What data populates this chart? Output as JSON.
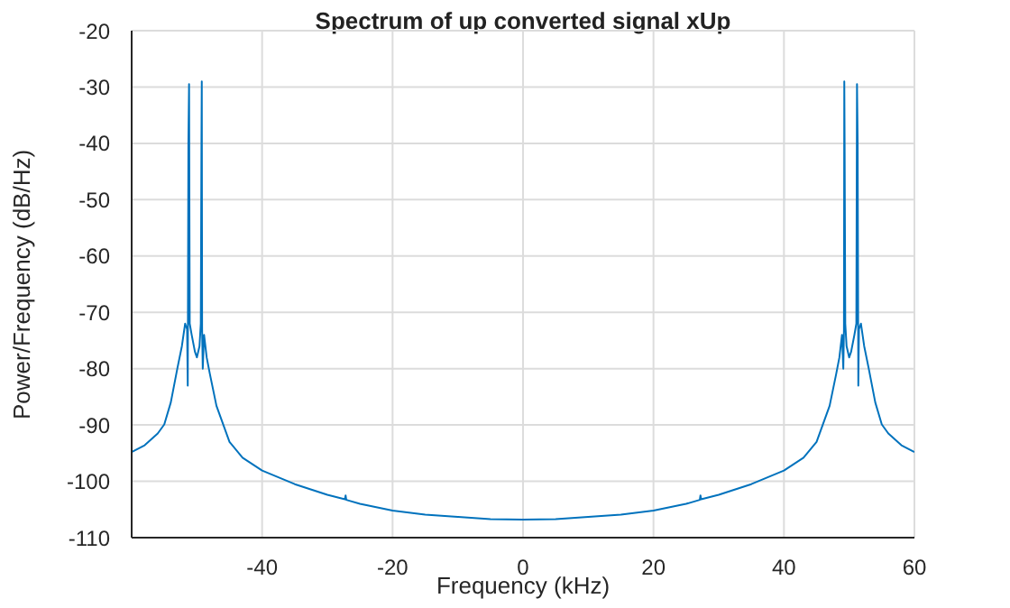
{
  "chart_data": {
    "type": "line",
    "title": "Spectrum of up converted signal xUp",
    "xlabel": "Frequency (kHz)",
    "ylabel": "Power/Frequency (dB/Hz)",
    "x": [
      -60,
      -58,
      -56,
      -55,
      -54,
      -53,
      -52.3,
      -51.8,
      -51.5,
      -51.4,
      -51.3,
      -51.2,
      -51.1,
      -50.8,
      -50.3,
      -50,
      -49.6,
      -49.4,
      -49.3,
      -49.25,
      -49.2,
      -49.1,
      -48.9,
      -48.5,
      -48,
      -47,
      -45,
      -43,
      -40,
      -35,
      -30,
      -27.3,
      -27.2,
      -27.1,
      -25,
      -20,
      -15,
      -10,
      -5,
      0,
      5,
      10,
      15,
      20,
      25,
      27.1,
      27.2,
      27.3,
      30,
      35,
      40,
      43,
      45,
      47,
      48,
      48.5,
      48.9,
      49.1,
      49.2,
      49.25,
      49.3,
      49.4,
      49.6,
      50,
      50.3,
      50.8,
      51.1,
      51.2,
      51.3,
      51.4,
      51.5,
      51.8,
      52.3,
      53,
      54,
      55,
      56,
      58,
      60
    ],
    "series": [
      {
        "color": "#0072bd",
        "values": [
          -94.8,
          -93.6,
          -91.5,
          -89.9,
          -86,
          -80,
          -76,
          -72,
          -73,
          -83,
          -40,
          -29.5,
          -72,
          -74,
          -77,
          -78,
          -76,
          -72,
          -40,
          -29,
          -73,
          -80,
          -74,
          -78,
          -81,
          -86.6,
          -93,
          -95.8,
          -98.1,
          -100.5,
          -102.4,
          -103.2,
          -102.5,
          -103.3,
          -104,
          -105.2,
          -105.9,
          -106.3,
          -106.7,
          -106.8,
          -106.7,
          -106.3,
          -105.9,
          -105.2,
          -104,
          -103.3,
          -102.5,
          -103.2,
          -102.4,
          -100.5,
          -98.1,
          -95.8,
          -93,
          -86.6,
          -81,
          -78,
          -74,
          -80,
          -73,
          -29,
          -40,
          -72,
          -76,
          -78,
          -77,
          -74,
          -72,
          -29.5,
          -40,
          -83,
          -73,
          -72,
          -76,
          -80,
          -86,
          -89.9,
          -91.5,
          -93.6,
          -94.8
        ]
      }
    ],
    "xlim": [
      -60,
      60
    ],
    "xticks": [
      -40,
      -20,
      0,
      20,
      40,
      60
    ],
    "ylim": [
      -110,
      -20
    ],
    "yticks": [
      -110,
      -100,
      -90,
      -80,
      -70,
      -60,
      -50,
      -40,
      -30,
      -20
    ],
    "grid": true,
    "marker": "none",
    "line_style": "solid"
  }
}
